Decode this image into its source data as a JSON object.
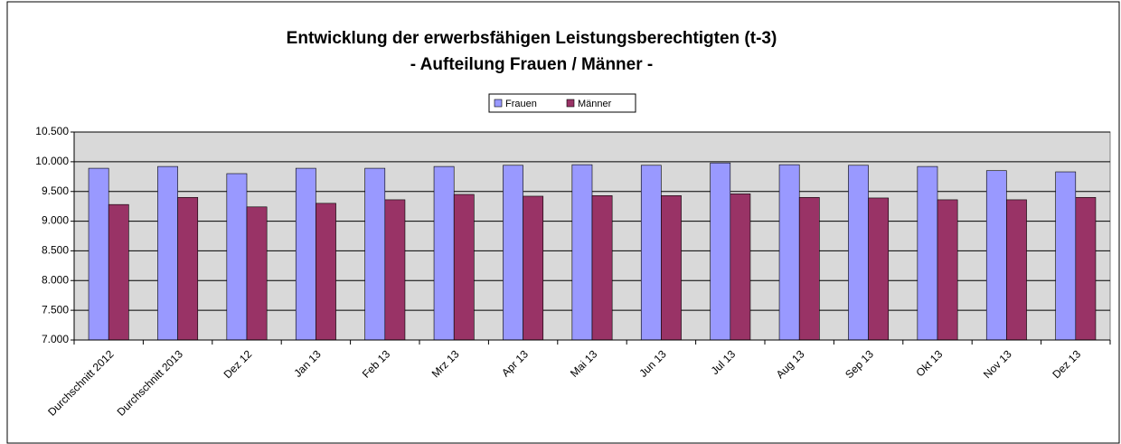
{
  "chart_data": {
    "type": "bar",
    "title": "Entwicklung der erwerbsfähigen Leistungsberechtigten (t-3)",
    "subtitle": "- Aufteilung Frauen / Männer -",
    "categories": [
      "Durchschnitt 2012",
      "Durchschnitt 2013",
      "Dez 12",
      "Jan 13",
      "Feb 13",
      "Mrz 13",
      "Apr 13",
      "Mai 13",
      "Jun 13",
      "Jul 13",
      "Aug 13",
      "Sep 13",
      "Okt 13",
      "Nov 13",
      "Dez 13"
    ],
    "series": [
      {
        "name": "Frauen",
        "color": "#9999ff",
        "values": [
          9890,
          9920,
          9800,
          9890,
          9890,
          9920,
          9940,
          9950,
          9940,
          9980,
          9950,
          9940,
          9920,
          9850,
          9830
        ]
      },
      {
        "name": "Männer",
        "color": "#993366",
        "values": [
          9280,
          9400,
          9240,
          9300,
          9360,
          9450,
          9420,
          9430,
          9430,
          9460,
          9400,
          9390,
          9360,
          9360,
          9400
        ]
      }
    ],
    "ylim": [
      7000,
      10500
    ],
    "yticks": [
      {
        "value": 7000,
        "label": "7.000"
      },
      {
        "value": 7500,
        "label": "7.500"
      },
      {
        "value": 8000,
        "label": "8.000"
      },
      {
        "value": 8500,
        "label": "8.500"
      },
      {
        "value": 9000,
        "label": "9.000"
      },
      {
        "value": 9500,
        "label": "9.500"
      },
      {
        "value": 10000,
        "label": "10.000"
      },
      {
        "value": 10500,
        "label": "10.500"
      }
    ],
    "grid": true,
    "legend": "top"
  }
}
